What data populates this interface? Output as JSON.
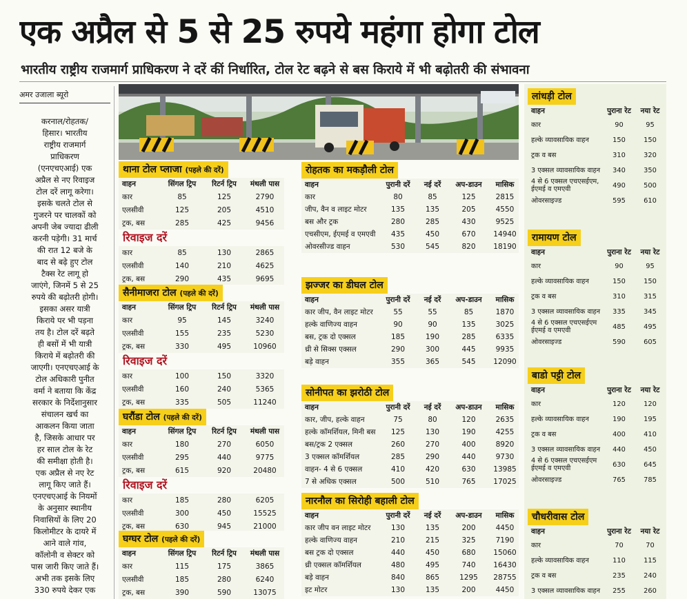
{
  "header": {
    "title": "एक अप्रैल से 5 से 25 रुपये महंगा होगा टोल",
    "subtitle": "भारतीय राष्ट्रीय राजमार्ग प्राधिकरण ने दरें कीं निर्धारित, टोल रेट बढ़ने से बस किराये में भी बढ़ोतरी की संभावना"
  },
  "article": {
    "byline": "अमर उजाला ब्यूरो",
    "lines": [
      "करनाल/रोहतक/",
      "हिसार। भारतीय",
      "राष्ट्रीय राजमार्ग",
      "प्राधिकरण",
      "(एनएचएआई) एक",
      "अप्रैल से नए रिवाइज",
      "टोल दरें लागू करेगा।",
      "इसके चलते टोल से",
      "गुजरने पर चालकों को",
      "अपनी जेब ज्यादा ढीली",
      "करनी पड़ेगी। 31 मार्च",
      "की रात 12 बजे के",
      "बाद से बढ़े हुए टोल",
      "टैक्स रेट लागू हो",
      "जाएंगे, जिनमें 5 से 25",
      "रुपये की बढ़ोतरी होगी।",
      "इसका असर यात्री",
      "किराये पर भी पड़ना",
      "तय है। टोल दरें बढ़ते",
      "ही बसों में भी यात्री",
      "किराये में बढ़ोतरी की",
      "जाएगी। एनएचएआई के",
      "टोल अधिकारी पुनीत",
      "वर्मा ने बताया कि केंद्र",
      "सरकार के निर्देशानुसार",
      "संचालन खर्च का",
      "आकलन किया जाता",
      "है, जिसके आधार पर",
      "हर साल टोल के रेट",
      "की समीक्षा होती है।",
      "एक अप्रैल से नए रेट",
      "लागू किए जाते हैं।",
      "एनएचएआई के नियमों",
      "के अनुसार स्थानीय",
      "निवासियों के लिए 20",
      "किलोमीटर के दायरे में",
      "आने वाले गांव,",
      "कॉलोनी व सेक्टर को",
      "पास जारी किए जाते हैं।",
      "अभी तक इसके लिए",
      "330 रुपये देकर एक"
    ]
  },
  "left_tables": [
    {
      "title": "थाना टोल प्लाजा",
      "note": "(पहले की दरें)",
      "columns": [
        "वाहन",
        "सिंगल ट्रिप",
        "रिटर्न ट्रिप",
        "मंथली पास"
      ],
      "rows": [
        [
          "कार",
          85,
          125,
          2790
        ],
        [
          "एलसीवी",
          125,
          205,
          4510
        ],
        [
          "ट्रक, बस",
          285,
          425,
          9456
        ]
      ],
      "revised_label": "रिवाइज दरें",
      "revised_rows": [
        [
          "कार",
          85,
          130,
          2865
        ],
        [
          "एलसीवी",
          140,
          210,
          4625
        ],
        [
          "ट्रक, बस",
          290,
          435,
          9695
        ]
      ]
    },
    {
      "title": "सैनीमाजरा टोल",
      "note": "(पहले की दरें)",
      "columns": [
        "वाहन",
        "सिंगल ट्रिप",
        "रिटर्न ट्रिप",
        "मंथली पास"
      ],
      "rows": [
        [
          "कार",
          95,
          145,
          3240
        ],
        [
          "एलसीवी",
          155,
          235,
          5230
        ],
        [
          "ट्रक, बस",
          330,
          495,
          10960
        ]
      ],
      "revised_label": "रिवाइज दरें",
      "revised_rows": [
        [
          "कार",
          100,
          150,
          3320
        ],
        [
          "एलसीवी",
          160,
          240,
          5365
        ],
        [
          "ट्रक, बस",
          335,
          505,
          11240
        ]
      ]
    },
    {
      "title": "घरौंडा टोल",
      "note": "(पहले की दरें)",
      "columns": [
        "वाहन",
        "सिंगल ट्रिप",
        "रिटर्न ट्रिप",
        "मंथली पास"
      ],
      "rows": [
        [
          "कार",
          180,
          270,
          6050
        ],
        [
          "एलसीवी",
          295,
          440,
          9775
        ],
        [
          "ट्रक, बस",
          615,
          920,
          20480
        ]
      ],
      "revised_label": "रिवाइज दरें",
      "revised_rows": [
        [
          "कार",
          185,
          280,
          6205
        ],
        [
          "एलसीवी",
          300,
          450,
          15525
        ],
        [
          "ट्रक, बस",
          630,
          945,
          21000
        ]
      ]
    },
    {
      "title": "घग्घर टोल",
      "note": "(पहले की दरें)",
      "columns": [
        "वाहन",
        "सिंगल ट्रिप",
        "रिटर्न ट्रिप",
        "मंथली पास"
      ],
      "rows": [
        [
          "कार",
          115,
          175,
          3865
        ],
        [
          "एलसीवी",
          185,
          280,
          6240
        ],
        [
          "ट्रक, बस",
          390,
          590,
          13075
        ]
      ]
    }
  ],
  "mid_tables": [
    {
      "title": "रोहतक का मकड़ौली टोल",
      "columns": [
        "वाहन",
        "पुरानी दरें",
        "नई दरें",
        "अप-डाउन",
        "मासिक"
      ],
      "rows": [
        [
          "कार",
          80,
          85,
          125,
          2815
        ],
        [
          "जीप, वैन व लाइट मोटर",
          135,
          135,
          205,
          4550
        ],
        [
          "बस और ट्रक",
          280,
          285,
          430,
          9525
        ],
        [
          "एचसीएम, ईएमई व एमएवी",
          435,
          450,
          670,
          14940
        ],
        [
          "ओवरसीज्ड वाहन",
          530,
          545,
          820,
          18190
        ]
      ]
    },
    {
      "title": "झज्जर का डीघल टोल",
      "columns": [
        "वाहन",
        "पुरानी दरें",
        "नई दरें",
        "अप-डाउन",
        "मासिक"
      ],
      "rows": [
        [
          "कार जीप, वैन लाइट मोटर",
          55,
          55,
          85,
          1870
        ],
        [
          "हल्के वाणिज्य वाहन",
          90,
          90,
          135,
          3025
        ],
        [
          "बस, ट्रक दो एक्सल",
          185,
          190,
          285,
          6335
        ],
        [
          "थ्री से सिक्स एक्सल",
          290,
          300,
          445,
          9935
        ],
        [
          "बड़े वाहन",
          355,
          365,
          545,
          12090
        ]
      ]
    },
    {
      "title": "सोनीपत का झरोठी टोल",
      "columns": [
        "वाहन",
        "पुरानी दरें",
        "नई दरें",
        "अप-डाउन",
        "मासिक"
      ],
      "rows": [
        [
          "कार, जीप, हल्के वाहन",
          75,
          80,
          120,
          2635
        ],
        [
          "हल्के कॉमर्शियल, मिनी बस",
          125,
          130,
          190,
          4255
        ],
        [
          "बस/ट्रक 2 एक्सल",
          260,
          270,
          400,
          8920
        ],
        [
          "3 एक्सल कॉमर्शियल",
          285,
          290,
          440,
          9730
        ],
        [
          "वाहन- 4 से 6 एक्सल",
          410,
          420,
          630,
          13985
        ],
        [
          "7 से अधिक एक्सल",
          500,
          510,
          765,
          17025
        ]
      ]
    },
    {
      "title": "नारनौल का सिरोही बहाली टोल",
      "columns": [
        "वाहन",
        "पुरानी दरें",
        "नई दरें",
        "अप-डाउन",
        "मासिक"
      ],
      "rows": [
        [
          "कार जीप वन लाइट मोटर",
          130,
          135,
          200,
          4450
        ],
        [
          "हल्के वाणिज्य वाहन",
          210,
          215,
          325,
          7190
        ],
        [
          "बस ट्रक दो एक्सल",
          440,
          450,
          680,
          15060
        ],
        [
          "थ्री एक्सल कॉमर्शियल",
          480,
          495,
          740,
          16430
        ],
        [
          "बड़े वाहन",
          840,
          865,
          1295,
          28755
        ],
        [
          "इट मोटर",
          130,
          135,
          200,
          4450
        ]
      ]
    }
  ],
  "right_tables": [
    {
      "title": "लांधड़ी टोल",
      "columns": [
        "वाहन",
        "पुराना रेट",
        "नया रेट"
      ],
      "rows": [
        [
          "कार",
          90,
          95
        ],
        [
          "हल्के व्यावसायिक वाहन",
          150,
          150
        ],
        [
          "ट्रक व बस",
          310,
          320
        ],
        [
          "3 एक्सल व्यावसायिक वाहन",
          340,
          350
        ],
        [
          "4 से 6 एक्सल एचएसईएम, ईएमई व एमएवी",
          490,
          500
        ],
        [
          "ओवरसाइज्ड",
          595,
          610
        ]
      ]
    },
    {
      "title": "रामायण टोल",
      "columns": [
        "वाहन",
        "पुराना रेट",
        "नया रेट"
      ],
      "rows": [
        [
          "कार",
          90,
          95
        ],
        [
          "हल्के व्यावसायिक वाहन",
          150,
          150
        ],
        [
          "ट्रक व बस",
          310,
          315
        ],
        [
          "3 एक्सल व्यावसायिक वाहन",
          335,
          345
        ],
        [
          "4 से 6 एक्सल एचएसईएम ईएमई व एमएवी",
          485,
          495
        ],
        [
          "ओवरसाइज्ड",
          590,
          605
        ]
      ]
    },
    {
      "title": "बाडो पट्टी टोल",
      "columns": [
        "वाहन",
        "पुराना रेट",
        "नया रेट"
      ],
      "rows": [
        [
          "कार",
          120,
          120
        ],
        [
          "हल्के व्यावसायिक वाहन",
          190,
          195
        ],
        [
          "ट्रक व बस",
          400,
          410
        ],
        [
          "3 एक्सल व्यावसायिक वाहन",
          440,
          450
        ],
        [
          "4 से 6 एक्सल एचएसईएम ईएमई व एमएवी",
          630,
          645
        ],
        [
          "ओवरसाइज्ड",
          765,
          785
        ]
      ]
    },
    {
      "title": "चौधरीवास टोल",
      "columns": [
        "वाहन",
        "पुराना रेट",
        "नया रेट"
      ],
      "rows": [
        [
          "कार",
          70,
          70
        ],
        [
          "हल्के व्यावसायिक वाहन",
          110,
          115
        ],
        [
          "ट्रक व बस",
          235,
          240
        ],
        [
          "3 एक्सल व्यावसायिक वाहन",
          255,
          260
        ]
      ]
    }
  ]
}
